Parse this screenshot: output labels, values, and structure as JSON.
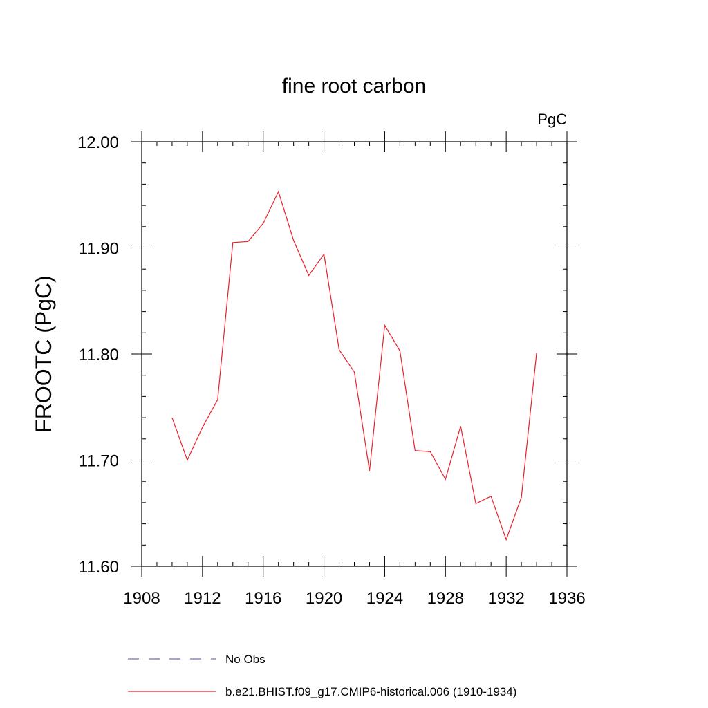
{
  "chart_data": {
    "type": "line",
    "title": "fine root carbon",
    "units_label": "PgC",
    "ylabel": "FROOTC  (PgC)",
    "xlabel": "",
    "xlim": [
      1908,
      1936
    ],
    "ylim": [
      11.6,
      12.0
    ],
    "x_major_ticks": [
      1908,
      1912,
      1916,
      1920,
      1924,
      1928,
      1932,
      1936
    ],
    "x_tick_labels": [
      "1908",
      "1912",
      "1916",
      "1920",
      "1924",
      "1928",
      "1932",
      "1936"
    ],
    "y_major_ticks": [
      11.6,
      11.7,
      11.8,
      11.9,
      12.0
    ],
    "y_tick_labels": [
      "11.60",
      "11.70",
      "11.80",
      "11.90",
      "12.00"
    ],
    "x_minor_step": 1,
    "y_minor_step": 0.02,
    "grid": false,
    "legend_position": "bottom",
    "series": [
      {
        "name": "No Obs",
        "style": "dashed",
        "color": "#6f6fb4",
        "x": [],
        "values": []
      },
      {
        "name": "b.e21.BHIST.f09_g17.CMIP6-historical.006 (1910-1934)",
        "style": "solid",
        "color": "#e8202a",
        "x": [
          1910,
          1911,
          1912,
          1913,
          1914,
          1915,
          1916,
          1917,
          1918,
          1919,
          1920,
          1921,
          1922,
          1923,
          1924,
          1925,
          1926,
          1927,
          1928,
          1929,
          1930,
          1931,
          1932,
          1933,
          1934
        ],
        "values": [
          11.74,
          11.7,
          11.731,
          11.757,
          11.905,
          11.906,
          11.923,
          11.953,
          11.907,
          11.874,
          11.894,
          11.804,
          11.783,
          11.69,
          11.827,
          11.803,
          11.709,
          11.708,
          11.682,
          11.732,
          11.659,
          11.666,
          11.625,
          11.665,
          11.801
        ]
      }
    ]
  }
}
